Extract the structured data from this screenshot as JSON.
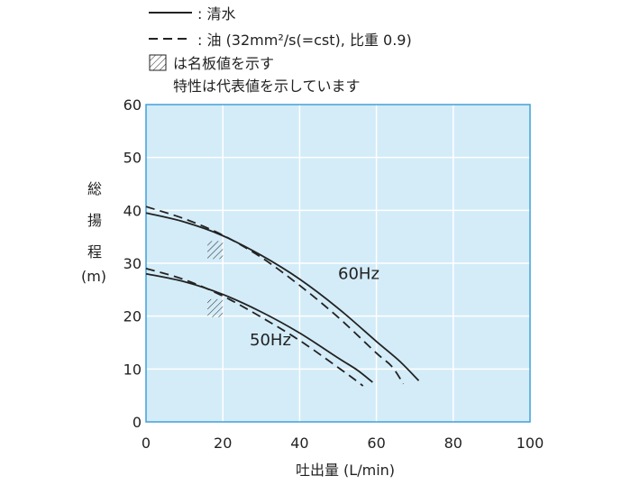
{
  "chart_data": {
    "type": "line",
    "xlabel": "吐出量 (L/min)",
    "ylabel_chars": [
      "総",
      "揚",
      "程"
    ],
    "ylabel_unit": "(m)",
    "xlim": [
      0,
      100
    ],
    "ylim": [
      0,
      60
    ],
    "xticks": [
      0,
      20,
      40,
      60,
      80,
      100
    ],
    "yticks": [
      0,
      10,
      20,
      30,
      40,
      50,
      60
    ],
    "grid": true,
    "plot_background": "#d3ecf8",
    "grid_color": "#ffffff",
    "frame_color": "#40a0d8",
    "legend": {
      "solid_label": ": 清水",
      "dashed_label": ": 油 (32mm²/s(=cst), 比重 0.9)",
      "hatch_label": "は名板値を示す",
      "note": "特性は代表値を示しています"
    },
    "annotations": [
      {
        "text": "60Hz",
        "x": 50,
        "y": 27
      },
      {
        "text": "50Hz",
        "x": 27,
        "y": 14.5
      }
    ],
    "series": [
      {
        "freq": "60Hz",
        "style": "solid",
        "x": [
          0,
          10,
          20,
          30,
          40,
          50,
          60,
          66,
          71
        ],
        "y": [
          39.5,
          37.8,
          35.2,
          31.5,
          27.0,
          21.5,
          15.2,
          11.5,
          7.8
        ]
      },
      {
        "freq": "60Hz",
        "style": "dashed",
        "x": [
          0,
          10,
          20,
          30,
          40,
          50,
          60,
          64,
          67
        ],
        "y": [
          40.7,
          38.4,
          35.3,
          31.1,
          25.8,
          19.8,
          13.0,
          10.5,
          7.2
        ]
      },
      {
        "freq": "50Hz",
        "style": "solid",
        "x": [
          0,
          10,
          20,
          30,
          40,
          50,
          55,
          59
        ],
        "y": [
          28.0,
          26.5,
          24.1,
          20.8,
          16.8,
          12.1,
          9.8,
          7.5
        ]
      },
      {
        "freq": "50Hz",
        "style": "dashed",
        "x": [
          0,
          10,
          20,
          30,
          40,
          50,
          54,
          56.5
        ],
        "y": [
          29.0,
          26.9,
          23.8,
          19.8,
          15.4,
          10.3,
          8.2,
          6.8
        ]
      }
    ],
    "rated_points": [
      {
        "freq": "60Hz",
        "x": [
          16,
          20
        ],
        "y": [
          30.8,
          34.2
        ]
      },
      {
        "freq": "50Hz",
        "x": [
          16,
          20
        ],
        "y": [
          19.8,
          23.2
        ]
      }
    ]
  }
}
